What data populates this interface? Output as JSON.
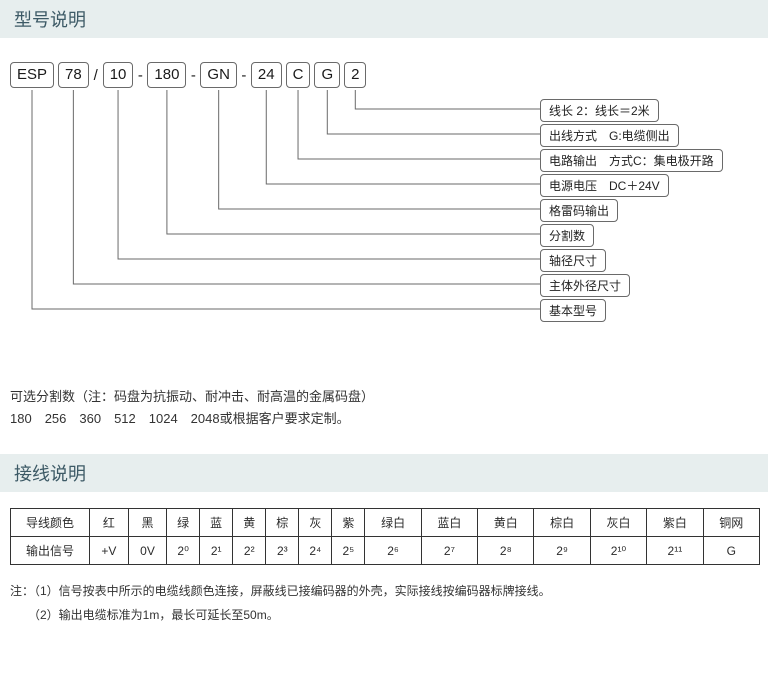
{
  "section1": {
    "title": "型号说明"
  },
  "code": {
    "parts": [
      "ESP",
      "78",
      "10",
      "180",
      "GN",
      "24",
      "C",
      "G",
      "2"
    ],
    "seps": [
      "",
      "/",
      "-",
      "-",
      "-",
      "",
      "",
      ""
    ]
  },
  "descs": [
    {
      "key": "d0",
      "text": "线长 2：线长＝2米"
    },
    {
      "key": "d1",
      "text": "出线方式　G:电缆侧出"
    },
    {
      "key": "d2",
      "text": "电路输出　方式C：集电极开路"
    },
    {
      "key": "d3",
      "text": "电源电压　DC＋24V"
    },
    {
      "key": "d4",
      "text": "格雷码输出"
    },
    {
      "key": "d5",
      "text": "分割数"
    },
    {
      "key": "d6",
      "text": "轴径尺寸"
    },
    {
      "key": "d7",
      "text": "主体外径尺寸"
    },
    {
      "key": "d8",
      "text": "基本型号"
    }
  ],
  "opt": {
    "line1": "可选分割数（注：码盘为抗振动、耐冲击、耐高温的金属码盘）",
    "line2": "180　256　360　512　1024　2048或根据客户要求定制。"
  },
  "section2": {
    "title": "接线说明"
  },
  "wiring": {
    "rowHeaders": [
      "导线颜色",
      "输出信号"
    ],
    "colors": [
      "红",
      "黑",
      "绿",
      "蓝",
      "黄",
      "棕",
      "灰",
      "紫",
      "绿白",
      "蓝白",
      "黄白",
      "棕白",
      "灰白",
      "紫白",
      "铜网"
    ],
    "signals": [
      "+V",
      "0V",
      "2⁰",
      "2¹",
      "2²",
      "2³",
      "2⁴",
      "2⁵",
      "2⁶",
      "2⁷",
      "2⁸",
      "2⁹",
      "2¹⁰",
      "2¹¹",
      "G"
    ]
  },
  "notes": {
    "n1": "注：（1）信号按表中所示的电缆线颜色连接，屏蔽线已接编码器的外壳，实际接线按编码器标牌接线。",
    "n2": "　　（2）输出电缆标准为1m，最长可延长至50m。"
  },
  "style": {
    "headerBg": "#e7eeee",
    "headerFg": "#3d5a66",
    "lineColor": "#6a6a6a",
    "codeBoxCenters": [
      16,
      62,
      110,
      164,
      220,
      272,
      306,
      332,
      358
    ],
    "descLeft": 530,
    "descYs": [
      55,
      80,
      105,
      130,
      155,
      180,
      205,
      230,
      255
    ],
    "codeBottomY": 36
  }
}
